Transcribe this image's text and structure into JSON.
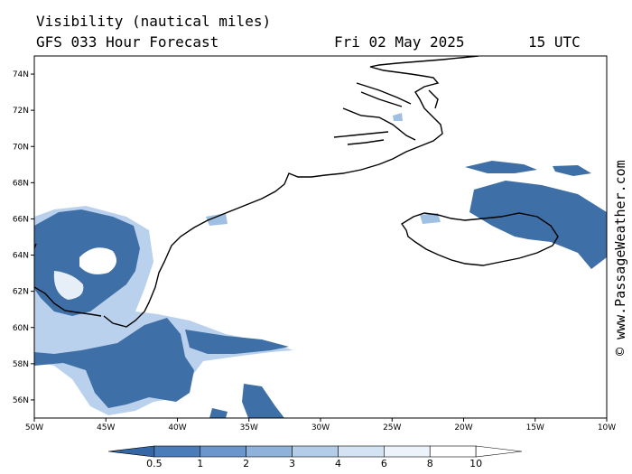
{
  "header": {
    "title": "Visibility (nautical miles)",
    "subtitle": "GFS 033 Hour Forecast",
    "date": "Fri 02 May 2025",
    "time": "15 UTC"
  },
  "credit": "© www.PassageWeather.com",
  "map": {
    "lon_range": [
      -50,
      -10
    ],
    "lat_range": [
      55,
      75
    ],
    "lat_ticks": [
      "56N",
      "58N",
      "60N",
      "62N",
      "64N",
      "66N",
      "68N",
      "70N",
      "72N",
      "74N"
    ],
    "lon_ticks": [
      "50W",
      "45W",
      "40W",
      "35W",
      "30W",
      "25W",
      "20W",
      "15W",
      "10W"
    ],
    "colors": {
      "low_visibility": "#3f6fa7",
      "mid_visibility": "#9fc0e3",
      "coastline": "#000000"
    }
  },
  "legend": {
    "labels": [
      "0.5",
      "1",
      "2",
      "3",
      "4",
      "6",
      "8",
      "10"
    ],
    "colors": [
      "#3567a6",
      "#4b7cba",
      "#6a96cb",
      "#8eb2da",
      "#b3cde8",
      "#d3e3f3",
      "#ecf3fb",
      "#ffffff"
    ]
  }
}
